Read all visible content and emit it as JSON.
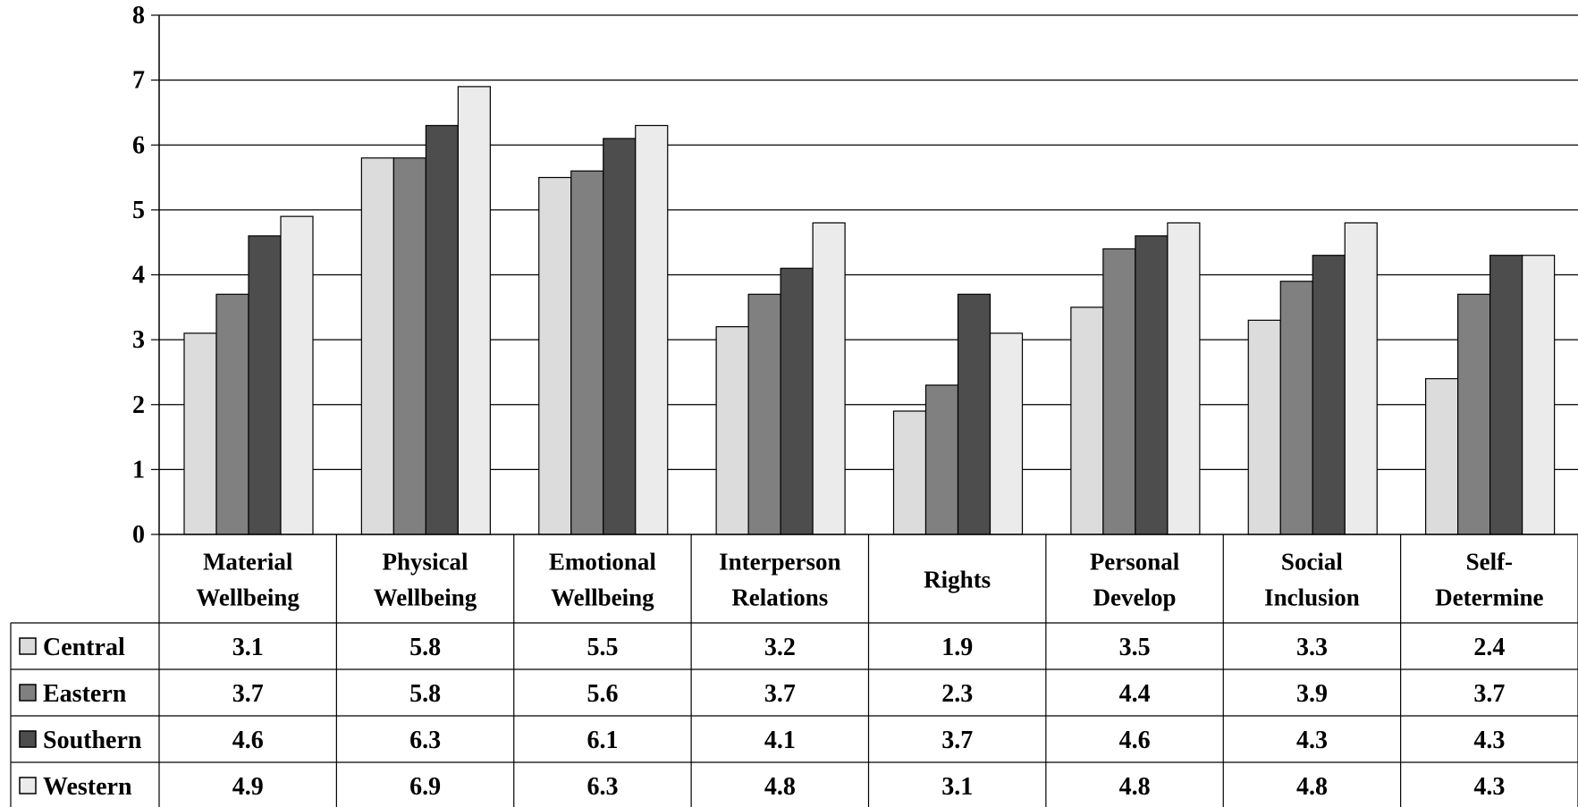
{
  "chart_data": {
    "type": "bar",
    "title": "",
    "xlabel": "",
    "ylabel": "",
    "ylim": [
      0,
      8
    ],
    "yticks": [
      "0",
      "1",
      "2",
      "3",
      "4",
      "5",
      "6",
      "7",
      "8"
    ],
    "grid": true,
    "legend": "data-table-left",
    "categories": [
      [
        "Material",
        "Wellbeing"
      ],
      [
        "Physical",
        "Wellbeing"
      ],
      [
        "Emotional",
        "Wellbeing"
      ],
      [
        "Interperson",
        "Relations"
      ],
      [
        "Rights"
      ],
      [
        "Personal",
        "Develop"
      ],
      [
        "Social",
        "Inclusion"
      ],
      [
        "Self-",
        "Determine"
      ]
    ],
    "series": [
      {
        "name": "Central",
        "color": "#dcdcdc",
        "values": [
          "3.1",
          "5.8",
          "5.5",
          "3.2",
          "1.9",
          "3.5",
          "3.3",
          "2.4"
        ]
      },
      {
        "name": "Eastern",
        "color": "#808080",
        "values": [
          "3.7",
          "5.8",
          "5.6",
          "3.7",
          "2.3",
          "4.4",
          "3.9",
          "3.7"
        ]
      },
      {
        "name": "Southern",
        "color": "#4d4d4d",
        "values": [
          "4.6",
          "6.3",
          "6.1",
          "4.1",
          "3.7",
          "4.6",
          "4.3",
          "4.3"
        ]
      },
      {
        "name": "Western",
        "color": "#ebebeb",
        "values": [
          "4.9",
          "6.9",
          "6.3",
          "4.8",
          "3.1",
          "4.8",
          "4.8",
          "4.3"
        ]
      }
    ]
  }
}
